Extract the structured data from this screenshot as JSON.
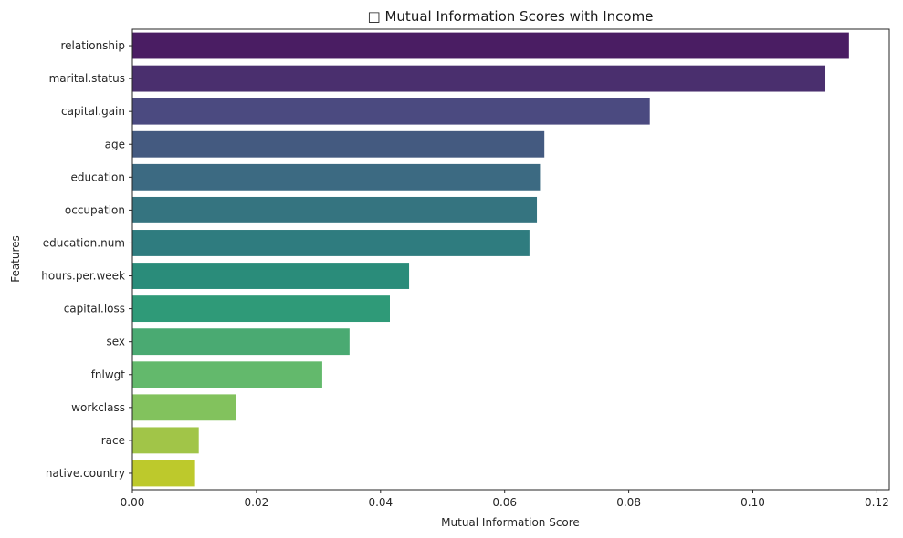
{
  "chart_data": {
    "type": "bar",
    "orientation": "horizontal",
    "title": "□ Mutual Information Scores with Income",
    "xlabel": "Mutual Information Score",
    "ylabel": "Features",
    "xlim": [
      0,
      0.122
    ],
    "xticks": [
      0.0,
      0.02,
      0.04,
      0.06,
      0.08,
      0.1,
      0.12
    ],
    "xtick_labels": [
      "0.00",
      "0.02",
      "0.04",
      "0.06",
      "0.08",
      "0.10",
      "0.12"
    ],
    "grid": false,
    "legend": "none",
    "colormap": "viridis",
    "categories": [
      "relationship",
      "marital.status",
      "capital.gain",
      "age",
      "education",
      "occupation",
      "education.num",
      "hours.per.week",
      "capital.loss",
      "sex",
      "fnlwgt",
      "workclass",
      "race",
      "native.country"
    ],
    "values": [
      0.1155,
      0.1117,
      0.0834,
      0.0664,
      0.0657,
      0.0652,
      0.064,
      0.0446,
      0.0415,
      0.035,
      0.0306,
      0.0167,
      0.0107,
      0.0101
    ],
    "colors": [
      "#4a1d63",
      "#4a2f6e",
      "#4b4a80",
      "#445a80",
      "#3c6a82",
      "#357480",
      "#2f7c7f",
      "#2a8c7a",
      "#2f9a78",
      "#4aaa72",
      "#63b96c",
      "#82c25d",
      "#a1c548",
      "#bdc92c"
    ]
  }
}
